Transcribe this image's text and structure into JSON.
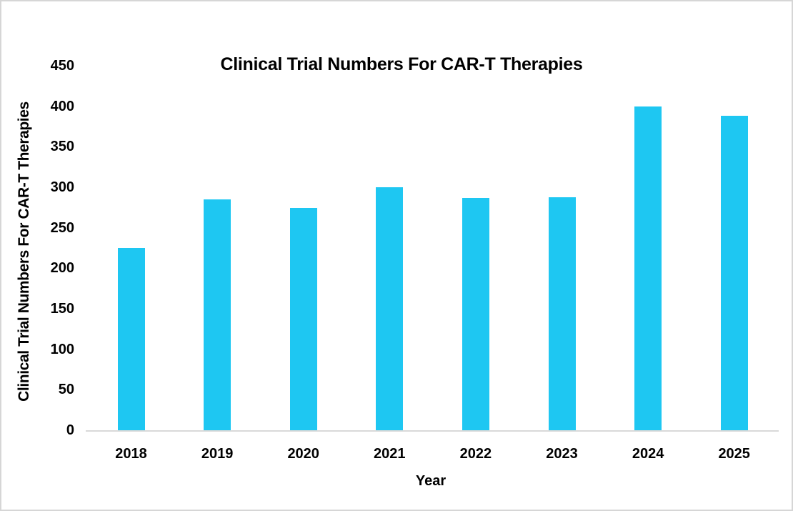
{
  "chart_data": {
    "type": "bar",
    "title": "Clinical Trial Numbers For CAR-T Therapies",
    "xlabel": "Year",
    "ylabel": "Clinical Trial Numbers For CAR-T Therapies",
    "categories": [
      "2018",
      "2019",
      "2020",
      "2021",
      "2022",
      "2023",
      "2024",
      "2025"
    ],
    "values": [
      225,
      285,
      274,
      300,
      287,
      288,
      400,
      388
    ],
    "yticks": [
      0,
      50,
      100,
      150,
      200,
      250,
      300,
      350,
      400,
      450
    ],
    "ylim": [
      0,
      450
    ],
    "grid": false,
    "legend": "none",
    "colors": {
      "bar": "#1EC7F2",
      "axis_line": "#D9D9D9",
      "text": "#000000",
      "background": "#FFFFFF"
    }
  }
}
